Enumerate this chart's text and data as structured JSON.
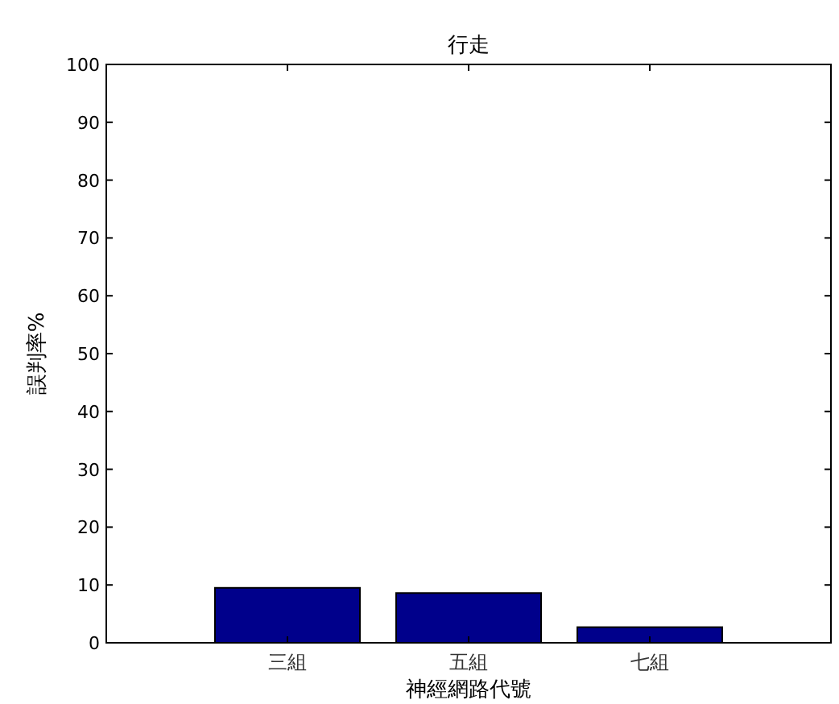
{
  "chart_data": {
    "type": "bar",
    "title": "行走",
    "xlabel": "神經網路代號",
    "ylabel": "誤判率%",
    "categories": [
      "三組",
      "五組",
      "七組"
    ],
    "values": [
      9.5,
      8.6,
      2.7
    ],
    "color": "#00008b",
    "ylim": [
      0,
      100
    ],
    "yticks": [
      0,
      10,
      20,
      30,
      40,
      50,
      60,
      70,
      80,
      90,
      100
    ]
  }
}
